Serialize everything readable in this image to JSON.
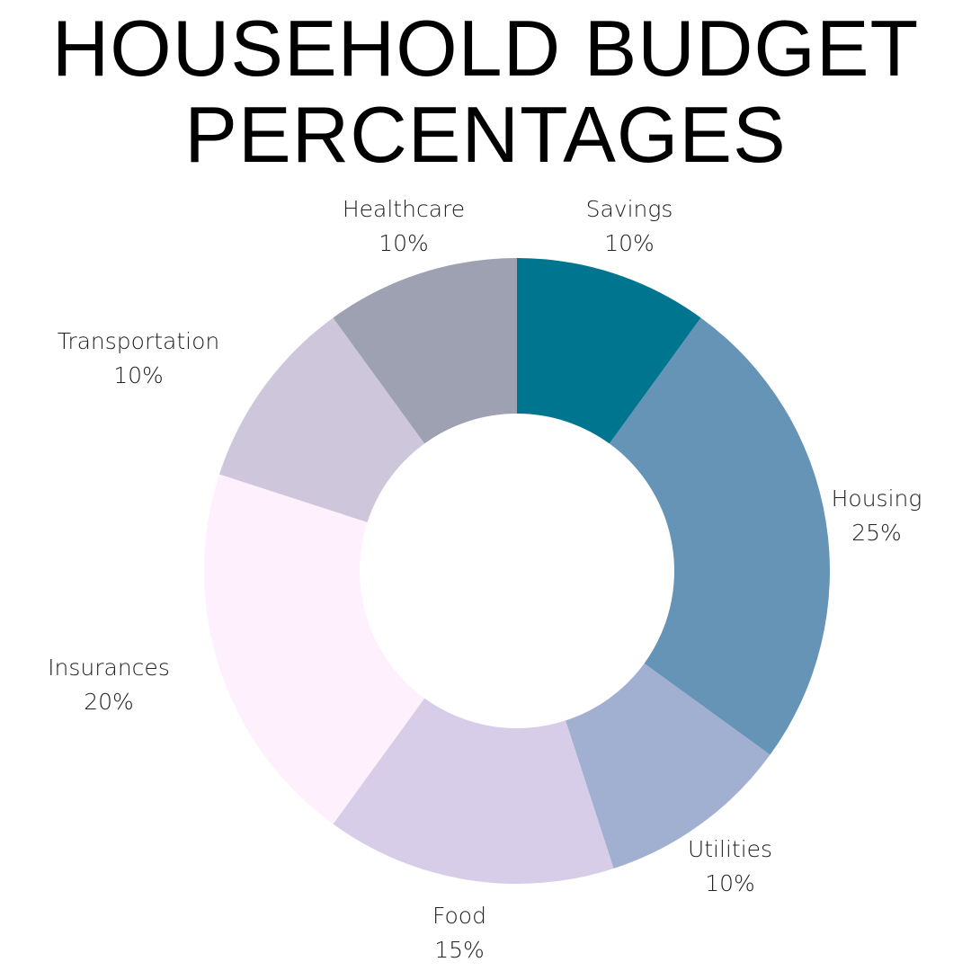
{
  "chart_data": {
    "type": "pie",
    "donut": true,
    "title_lines": [
      "HOUSEHOLD BUDGET",
      "PERCENTAGES"
    ],
    "slices": [
      {
        "label": "Savings",
        "value": 10,
        "value_label": "10%",
        "color": "#00758F"
      },
      {
        "label": "Housing",
        "value": 25,
        "value_label": "25%",
        "color": "#6594B6"
      },
      {
        "label": "Utilities",
        "value": 10,
        "value_label": "10%",
        "color": "#A1AFD1"
      },
      {
        "label": "Food",
        "value": 15,
        "value_label": "15%",
        "color": "#D7CDE9"
      },
      {
        "label": "Insurances",
        "value": 20,
        "value_label": "20%",
        "color": "#FEF0FC"
      },
      {
        "label": "Transportation",
        "value": 10,
        "value_label": "10%",
        "color": "#CEC6DA"
      },
      {
        "label": "Healthcare",
        "value": 10,
        "value_label": "10%",
        "color": "#9EA1B2"
      }
    ],
    "start_angle": "12 o'clock",
    "direction": "clockwise",
    "legend": "none"
  }
}
